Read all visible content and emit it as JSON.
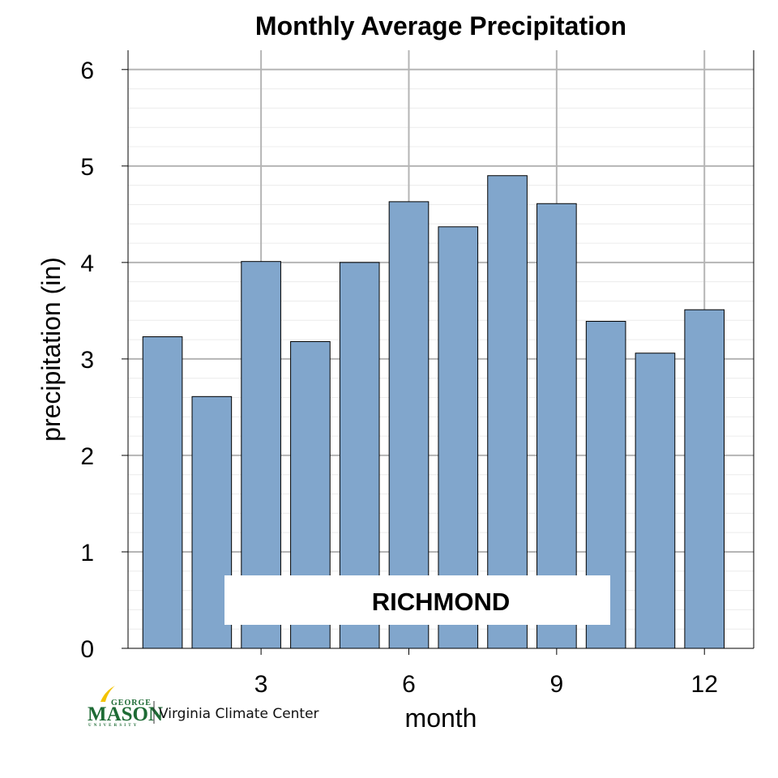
{
  "chart_data": {
    "type": "bar",
    "title": "Monthly Average Precipitation",
    "xlabel": "month",
    "ylabel": "precipitation (in)",
    "x": [
      1,
      2,
      3,
      4,
      5,
      6,
      7,
      8,
      9,
      10,
      11,
      12
    ],
    "values": [
      3.23,
      2.61,
      4.01,
      3.18,
      4.0,
      4.63,
      4.37,
      4.9,
      4.61,
      3.39,
      3.06,
      3.51
    ],
    "xticks": [
      3,
      6,
      9,
      12
    ],
    "yticks": [
      0,
      1,
      2,
      3,
      4,
      5,
      6
    ],
    "xlim": [
      0.3,
      13.0
    ],
    "ylim": [
      0,
      6.2
    ],
    "grid": true,
    "bar_color": "#81a6cc",
    "annotation": "RICHMOND"
  },
  "logo": {
    "top_word": "GEORGE",
    "main_word": "MASON",
    "bottom_word": "UNIVERSITY",
    "center_name": "Virginia Climate Center",
    "green": "#1e6b35",
    "gold": "#f3c300"
  }
}
